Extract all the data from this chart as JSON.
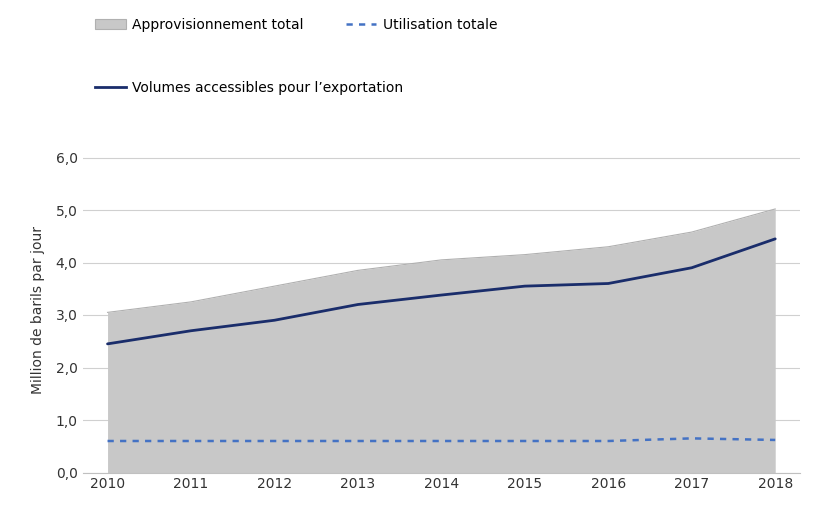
{
  "years": [
    2010,
    2011,
    2012,
    2013,
    2014,
    2015,
    2016,
    2017,
    2018
  ],
  "approvisionnement_upper": [
    3.05,
    3.25,
    3.55,
    3.85,
    4.05,
    4.15,
    4.3,
    4.58,
    5.02
  ],
  "approvisionnement_lower": [
    0.0,
    0.0,
    0.0,
    0.0,
    0.0,
    0.0,
    0.0,
    0.0,
    0.0
  ],
  "volumes_exportation": [
    2.45,
    2.7,
    2.9,
    3.2,
    3.38,
    3.55,
    3.6,
    3.9,
    4.45
  ],
  "utilisation_totale": [
    0.6,
    0.6,
    0.6,
    0.6,
    0.6,
    0.6,
    0.6,
    0.65,
    0.62
  ],
  "fill_color": "#c8c8c8",
  "fill_edge_color": "#b0b0b0",
  "export_line_color": "#1a2d6b",
  "utilisation_line_color": "#4472c4",
  "ylabel": "Million de barils par jour",
  "ylim": [
    0.0,
    6.2
  ],
  "yticks": [
    0.0,
    1.0,
    2.0,
    3.0,
    4.0,
    5.0,
    6.0
  ],
  "ytick_labels": [
    "0,0",
    "1,0",
    "2,0",
    "3,0",
    "4,0",
    "5,0",
    "6,0"
  ],
  "xlim": [
    2009.7,
    2018.3
  ],
  "xticks": [
    2010,
    2011,
    2012,
    2013,
    2014,
    2015,
    2016,
    2017,
    2018
  ],
  "legend_approv": "Approvisionnement total",
  "legend_util": "Utilisation totale",
  "legend_vol": "Volumes accessibles pour l’exportation",
  "background_color": "#ffffff",
  "grid_color": "#d0d0d0"
}
